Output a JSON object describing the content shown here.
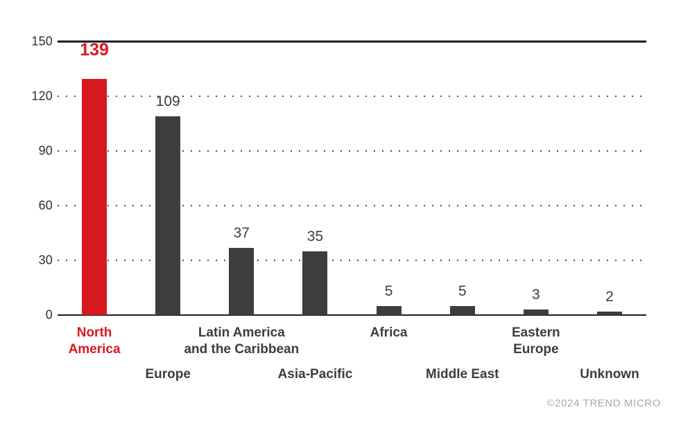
{
  "chart_data": {
    "type": "bar",
    "categories": [
      "North America",
      "Europe",
      "Latin America and the Caribbean",
      "Asia-Pacific",
      "Africa",
      "Middle East",
      "Eastern Europe",
      "Unknown"
    ],
    "values": [
      139,
      109,
      37,
      35,
      5,
      5,
      3,
      2
    ],
    "title": "",
    "xlabel": "",
    "ylabel": "",
    "ylim": [
      0,
      150
    ],
    "yticks": [
      0,
      30,
      60,
      90,
      120,
      150
    ],
    "legend": "none",
    "grid": "horizontal dotted gridlines at 30, 60, 90, 120; solid black rules at 0 and 150",
    "highlight": {
      "category": "North America",
      "value": 139,
      "color": "#d7191f"
    },
    "bar_color": "#3d3d40"
  },
  "axis": {
    "ticks": [
      "150",
      "120",
      "90",
      "60",
      "30",
      "0"
    ]
  },
  "bars": [
    {
      "value": "139",
      "line1": "North",
      "line2": "America"
    },
    {
      "value": "109",
      "line1": "Europe"
    },
    {
      "value": "37",
      "line1": "Latin America",
      "line2": "and the Caribbean"
    },
    {
      "value": "35",
      "line1": "Asia-Pacific"
    },
    {
      "value": "5",
      "line1": "Africa"
    },
    {
      "value": "5",
      "line1": "Middle East"
    },
    {
      "value": "3",
      "line1": "Eastern",
      "line2": "Europe"
    },
    {
      "value": "2",
      "line1": "Unknown"
    }
  ],
  "footer": {
    "credit": "©2024 TREND MICRO"
  },
  "colors": {
    "highlight": "#d7191f",
    "bar": "#3d3d40",
    "text": "#3d3d3d",
    "tick_text": "#303030",
    "footer_text": "#a9a9a9",
    "background": "#ffffff"
  }
}
